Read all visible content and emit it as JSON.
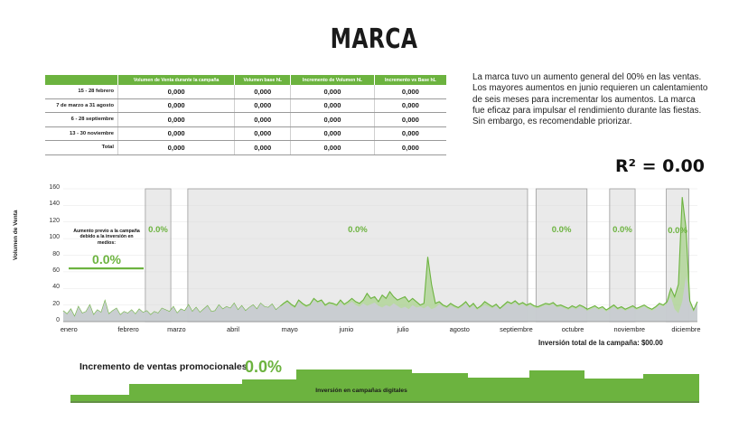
{
  "page": {
    "title": "MARCA",
    "description": "La marca tuvo un aumento general del 00% en las ventas. Los mayores aumentos en junio requieren un calentamiento de seis meses para incrementar los aumentos. La marca fue eficaz para impulsar el rendimiento durante las fiestas. Sin embargo, es recomendable priorizar.",
    "r2": "R² = 0.00",
    "inversion_total": "Inversión total de la campaña: $00.00",
    "incremento_label": "Incremento de ventas promocionales",
    "incremento_value": "0.0%",
    "digital_label": "Inversión en campañas digitales",
    "previo_text": "Aumento previo a la campaña debido a la inversión en medios:",
    "previo_value": "0.0%"
  },
  "table": {
    "headers": [
      "",
      "Volumen de Venta durante la campaña",
      "Volumen base hL",
      "Incremento de Volumen hL",
      "Incremento vs Base hL"
    ],
    "rows": [
      {
        "label": "15 - 28 febrero",
        "values": [
          "0,000",
          "0,000",
          "0,000",
          "0,000"
        ]
      },
      {
        "label": "7 de marzo a 31 agosto",
        "values": [
          "0,000",
          "0,000",
          "0,000",
          "0,000"
        ]
      },
      {
        "label": "6 - 28 septiembre",
        "values": [
          "0,000",
          "0,000",
          "0,000",
          "0,000"
        ]
      },
      {
        "label": "13 - 30 noviembre",
        "values": [
          "0,000",
          "0,000",
          "0,000",
          "0,000"
        ]
      },
      {
        "label": "Total",
        "values": [
          "0,000",
          "0,000",
          "0,000",
          "0,000"
        ]
      }
    ]
  },
  "colors": {
    "accent": "#6cb33f",
    "base_area": "#c9ccd3",
    "band": "#d9d9d9",
    "band_border": "#9c9c9c"
  },
  "chart_data": {
    "type": "area",
    "ylabel": "Volumen de Venta",
    "ylim": [
      0,
      160
    ],
    "yticks": [
      0,
      20,
      40,
      60,
      80,
      100,
      120,
      140,
      160
    ],
    "xlabels": [
      "enero",
      "febrero",
      "marzo",
      "abril",
      "mayo",
      "junio",
      "julio",
      "agosto",
      "septiembre",
      "octubre",
      "noviembre",
      "diciembre"
    ],
    "campaign_periods": [
      {
        "start": 1.45,
        "end": 1.9,
        "label": "0.0%"
      },
      {
        "start": 2.2,
        "end": 8.2,
        "label": "0.0%"
      },
      {
        "start": 8.35,
        "end": 9.25,
        "label": "0.0%"
      },
      {
        "start": 9.65,
        "end": 10.1,
        "label": "0.0%"
      },
      {
        "start": 10.65,
        "end": 11.05,
        "label": "0.0%"
      }
    ],
    "series": [
      {
        "name": "Volumen base",
        "color": "#c9ccd3",
        "values": [
          13,
          9,
          15,
          6,
          18,
          10,
          12,
          20,
          8,
          14,
          11,
          25,
          9,
          13,
          16,
          8,
          12,
          10,
          14,
          9,
          15,
          11,
          13,
          8,
          12,
          10,
          16,
          14,
          12,
          18,
          10,
          15,
          13,
          20,
          12,
          17,
          11,
          15,
          19,
          12,
          13,
          20,
          15,
          18,
          16,
          22,
          14,
          19,
          13,
          17,
          20,
          15,
          22,
          18,
          17,
          21,
          14,
          18,
          20,
          23,
          19,
          16,
          24,
          20,
          17,
          19,
          26,
          22,
          24,
          18,
          21,
          20,
          18,
          23,
          19,
          21,
          24,
          20,
          18,
          22,
          19,
          21,
          23,
          19,
          17,
          20,
          18,
          22,
          19,
          16,
          18,
          15,
          20,
          17,
          18,
          16,
          19,
          15,
          17,
          21,
          18,
          16,
          19,
          17,
          15,
          18,
          22,
          16,
          19,
          14,
          17,
          20,
          18,
          16,
          19,
          15,
          18,
          22,
          20,
          23,
          19,
          21,
          18,
          20,
          17,
          16,
          18,
          20,
          19,
          21,
          17,
          18,
          16,
          14,
          17,
          15,
          18,
          16,
          13,
          15,
          17,
          14,
          16,
          12,
          15,
          18,
          14,
          16,
          13,
          15,
          17,
          14,
          16,
          18,
          15,
          13,
          16,
          20,
          18,
          22,
          30,
          15,
          10,
          24,
          55,
          20,
          12,
          22
        ]
      },
      {
        "name": "Volumen de Venta",
        "color": "#6cb33f",
        "values": [
          13,
          9,
          15,
          6,
          18,
          10,
          12,
          20,
          8,
          14,
          11,
          25,
          9,
          13,
          16,
          8,
          12,
          10,
          14,
          9,
          15,
          11,
          13,
          8,
          12,
          10,
          16,
          14,
          12,
          18,
          10,
          15,
          13,
          20,
          12,
          17,
          11,
          15,
          19,
          12,
          13,
          20,
          15,
          18,
          16,
          22,
          14,
          19,
          13,
          17,
          20,
          15,
          22,
          18,
          17,
          21,
          14,
          18,
          22,
          25,
          21,
          18,
          26,
          22,
          19,
          21,
          28,
          24,
          26,
          20,
          23,
          22,
          20,
          26,
          21,
          24,
          28,
          24,
          22,
          26,
          34,
          28,
          30,
          24,
          32,
          28,
          36,
          30,
          26,
          28,
          30,
          24,
          28,
          24,
          20,
          22,
          78,
          45,
          22,
          24,
          20,
          18,
          22,
          19,
          17,
          20,
          24,
          18,
          22,
          16,
          19,
          24,
          21,
          18,
          21,
          16,
          20,
          24,
          22,
          25,
          21,
          23,
          20,
          22,
          19,
          18,
          20,
          22,
          21,
          23,
          19,
          20,
          18,
          16,
          19,
          17,
          20,
          18,
          15,
          17,
          19,
          16,
          18,
          14,
          17,
          20,
          16,
          18,
          15,
          17,
          19,
          16,
          18,
          20,
          17,
          15,
          18,
          22,
          20,
          24,
          40,
          30,
          45,
          150,
          112,
          25,
          14,
          24
        ]
      }
    ]
  }
}
